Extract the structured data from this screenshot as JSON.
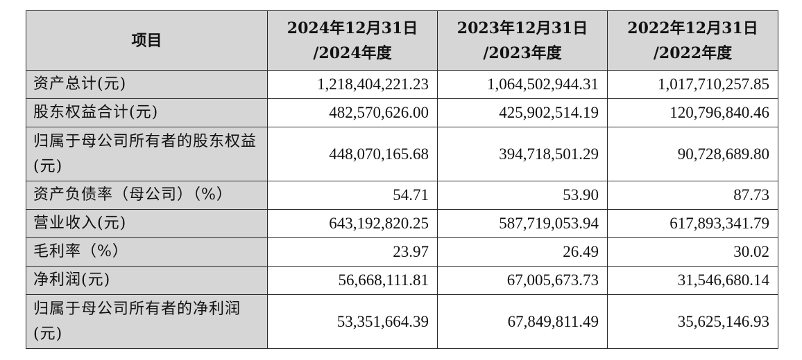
{
  "table": {
    "header": {
      "item": "项目",
      "columns": [
        {
          "line1": "2024年12月31日",
          "line2": "/2024年度"
        },
        {
          "line1": "2023年12月31日",
          "line2": "/2023年度"
        },
        {
          "line1": "2022年12月31日",
          "line2": "/2022年度"
        }
      ]
    },
    "rows": [
      {
        "label": "资产总计(元)",
        "values": [
          "1,218,404,221.23",
          "1,064,502,944.31",
          "1,017,710,257.85"
        ]
      },
      {
        "label": "股东权益合计(元)",
        "values": [
          "482,570,626.00",
          "425,902,514.19",
          "120,796,840.46"
        ]
      },
      {
        "label": "归属于母公司所有者的股东权益(元)",
        "values": [
          "448,070,165.68",
          "394,718,501.29",
          "90,728,689.80"
        ]
      },
      {
        "label": "资产负债率（母公司）（%）",
        "values": [
          "54.71",
          "53.90",
          "87.73"
        ]
      },
      {
        "label": "营业收入(元)",
        "values": [
          "643,192,820.25",
          "587,719,053.94",
          "617,893,341.79"
        ]
      },
      {
        "label": "毛利率（%）",
        "values": [
          "23.97",
          "26.49",
          "30.02"
        ]
      },
      {
        "label": "净利润(元)",
        "values": [
          "56,668,111.81",
          "67,005,673.73",
          "31,546,680.14"
        ]
      },
      {
        "label": "归属于母公司所有者的净利润(元)",
        "values": [
          "53,351,664.39",
          "67,849,811.49",
          "35,625,146.93"
        ]
      }
    ]
  }
}
